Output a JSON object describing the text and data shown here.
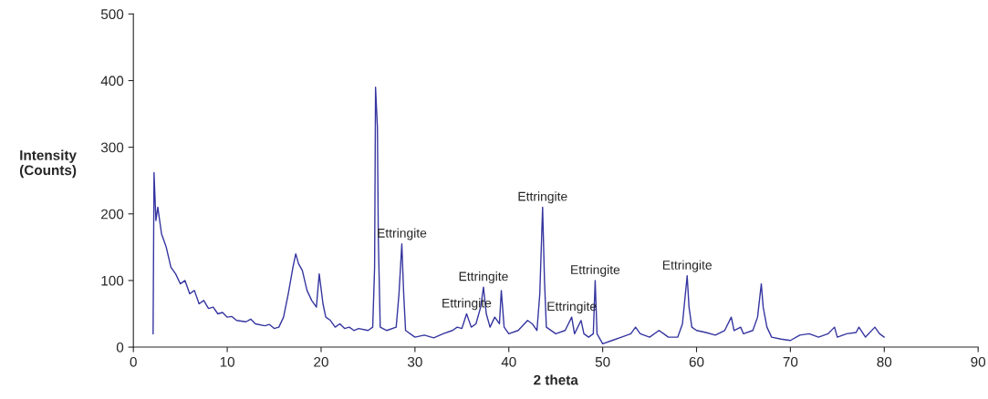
{
  "chart_data": {
    "type": "line",
    "xlabel": "2 theta",
    "ylabel": "Intensity\n(Counts)",
    "xlim": [
      0,
      90
    ],
    "xticks": [
      0,
      10,
      20,
      30,
      40,
      50,
      60,
      70,
      80,
      90
    ],
    "ylim": [
      0,
      500
    ],
    "yticks": [
      0,
      100,
      200,
      300,
      400,
      500
    ],
    "grid": false,
    "legend": false,
    "marker": "none",
    "line_style": "solid",
    "series": [
      {
        "color": "#3535a0",
        "x": [
          2.1,
          2.2,
          2.4,
          2.6,
          3,
          3.5,
          4,
          4.5,
          5,
          5.5,
          6,
          6.5,
          7,
          7.5,
          8,
          8.5,
          9,
          9.5,
          10,
          10.5,
          11,
          12,
          12.5,
          13,
          14,
          14.5,
          15,
          15.5,
          16,
          16.5,
          17,
          17.3,
          17.6,
          18,
          18.5,
          19,
          19.5,
          19.8,
          20.2,
          20.5,
          21,
          21.5,
          22,
          22.5,
          23,
          23.5,
          24,
          25,
          25.5,
          25.7,
          25.8,
          26,
          26.1,
          26.3,
          27,
          28,
          28.3,
          28.6,
          28.8,
          29,
          30,
          31,
          32,
          33,
          34,
          34.5,
          35,
          35.5,
          36,
          36.5,
          37,
          37.3,
          37.6,
          38,
          38.5,
          39,
          39.2,
          39.5,
          40,
          41,
          42,
          42.5,
          43,
          43.3,
          43.6,
          43.8,
          44,
          45,
          46,
          46.7,
          47,
          47.7,
          48,
          48.5,
          49,
          49.2,
          49.4,
          50,
          51,
          52,
          53,
          53.5,
          54,
          55,
          56,
          56.5,
          57,
          58,
          58.5,
          59,
          59.2,
          59.5,
          60,
          61,
          62,
          63,
          63.7,
          64,
          64.7,
          65,
          66,
          66.5,
          66.9,
          67.1,
          67.5,
          68,
          69,
          70,
          71,
          72,
          73,
          74,
          74.7,
          75,
          76,
          77,
          77.3,
          78,
          79,
          79.5,
          80
        ],
        "values": [
          20,
          262,
          190,
          210,
          170,
          150,
          120,
          110,
          95,
          100,
          80,
          85,
          65,
          70,
          58,
          60,
          50,
          52,
          45,
          46,
          40,
          38,
          42,
          35,
          32,
          34,
          28,
          30,
          45,
          80,
          120,
          140,
          125,
          115,
          85,
          70,
          60,
          110,
          65,
          45,
          40,
          30,
          35,
          28,
          30,
          25,
          28,
          25,
          30,
          120,
          390,
          330,
          160,
          30,
          25,
          30,
          80,
          155,
          80,
          25,
          15,
          18,
          14,
          20,
          25,
          30,
          28,
          50,
          30,
          35,
          60,
          90,
          50,
          30,
          45,
          35,
          85,
          30,
          20,
          25,
          40,
          35,
          25,
          80,
          210,
          100,
          30,
          20,
          25,
          45,
          20,
          40,
          20,
          15,
          20,
          100,
          20,
          5,
          10,
          15,
          20,
          30,
          20,
          15,
          25,
          20,
          15,
          15,
          35,
          107,
          60,
          30,
          25,
          22,
          18,
          25,
          45,
          25,
          30,
          20,
          25,
          45,
          95,
          60,
          30,
          15,
          12,
          10,
          18,
          20,
          15,
          20,
          30,
          15,
          20,
          22,
          30,
          15,
          30,
          20,
          15
        ]
      }
    ],
    "annotations": [
      {
        "text": "Ettringite",
        "x": 28.6,
        "y": 155
      },
      {
        "text": "Ettringite",
        "x": 35.5,
        "y": 50
      },
      {
        "text": "Ettringite",
        "x": 37.3,
        "y": 90
      },
      {
        "text": "Ettringite",
        "x": 43.6,
        "y": 210
      },
      {
        "text": "Ettringite",
        "x": 46.7,
        "y": 45
      },
      {
        "text": "Ettringite",
        "x": 49.2,
        "y": 100
      },
      {
        "text": "Ettringite",
        "x": 59,
        "y": 107
      }
    ]
  }
}
